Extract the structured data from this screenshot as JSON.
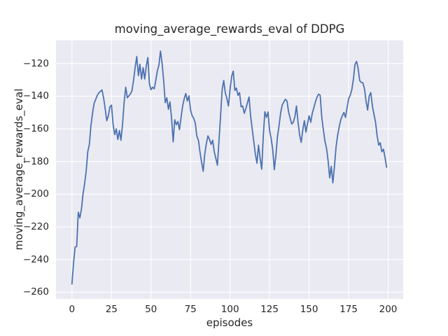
{
  "title": "moving_average_rewards_eval of DDPG",
  "colors": {
    "figure_background": "#FFFFFF",
    "axes_background": "#EAEAF2",
    "grid": "#FFFFFF",
    "line": "#4C72B0",
    "text": "#262626"
  },
  "chart_data": {
    "type": "line",
    "title": "moving_average_rewards_eval of DDPG",
    "xlabel": "episodes",
    "ylabel": "moving_average_rewards_eval",
    "x_ticks": [
      0,
      25,
      50,
      75,
      100,
      125,
      150,
      175,
      200
    ],
    "y_ticks": [
      -120,
      -140,
      -160,
      -180,
      -200,
      -220,
      -240,
      -260
    ],
    "xlim": [
      -10.1,
      209.5
    ],
    "ylim": [
      -264.2,
      -105.8
    ],
    "grid": true,
    "legend": false,
    "series": [
      {
        "name": "moving_average_rewards_eval",
        "x_range": {
          "start": 0,
          "end": 199,
          "step": 1
        },
        "y": [
          -255,
          -242,
          -232.5,
          -232,
          -211,
          -214.5,
          -209,
          -200,
          -193.5,
          -186,
          -174,
          -169.5,
          -158,
          -150.5,
          -144.5,
          -142,
          -139.5,
          -138,
          -137,
          -136.2,
          -141,
          -147.5,
          -155,
          -152,
          -146.5,
          -145.5,
          -157,
          -163.5,
          -160,
          -166.5,
          -161,
          -167,
          -157,
          -144,
          -134.5,
          -141,
          -139.8,
          -138.6,
          -136.5,
          -130,
          -122,
          -115.7,
          -127.5,
          -120.5,
          -129.5,
          -122.5,
          -129.5,
          -121.5,
          -116.4,
          -132.5,
          -136,
          -134.5,
          -135.5,
          -130.5,
          -124.5,
          -121,
          -112.4,
          -120,
          -130.5,
          -144,
          -141,
          -148,
          -143.5,
          -153.5,
          -168,
          -154.5,
          -157.5,
          -155.5,
          -160.5,
          -153,
          -146,
          -141.5,
          -138.4,
          -143,
          -139.8,
          -148.5,
          -152,
          -153.5,
          -156.5,
          -164.5,
          -167,
          -174.5,
          -180.5,
          -186,
          -175.5,
          -169,
          -164.3,
          -166.5,
          -169.5,
          -167,
          -174,
          -178,
          -182.3,
          -167,
          -152,
          -136,
          -130.4,
          -138,
          -141.5,
          -146,
          -135.5,
          -128,
          -124.6,
          -136.5,
          -135,
          -139.5,
          -137.8,
          -146.5,
          -146,
          -150.5,
          -147.5,
          -144,
          -140.5,
          -152,
          -160,
          -168,
          -175.4,
          -181,
          -170,
          -178,
          -184.7,
          -164.5,
          -149.5,
          -153,
          -149.7,
          -161,
          -166,
          -173,
          -185,
          -176,
          -164.7,
          -157.9,
          -150,
          -145.4,
          -143.5,
          -141.9,
          -143,
          -149.5,
          -153.5,
          -157,
          -156,
          -152.5,
          -146,
          -156,
          -164,
          -168.3,
          -160.5,
          -155,
          -162,
          -156.5,
          -152,
          -156,
          -150.5,
          -147,
          -143.5,
          -140.5,
          -138.7,
          -139.5,
          -153,
          -160.5,
          -167.5,
          -172,
          -179.5,
          -190,
          -183,
          -193,
          -183.5,
          -171.5,
          -164,
          -159,
          -154.5,
          -152,
          -150,
          -153,
          -147,
          -141.5,
          -139.5,
          -136,
          -129.5,
          -120.5,
          -118.7,
          -123,
          -130.5,
          -131.6,
          -131.8,
          -135.5,
          -143,
          -148.5,
          -140,
          -137.8,
          -146,
          -151,
          -156,
          -164,
          -170,
          -168.5,
          -174,
          -172.5,
          -177.5,
          -183.5
        ]
      }
    ]
  }
}
